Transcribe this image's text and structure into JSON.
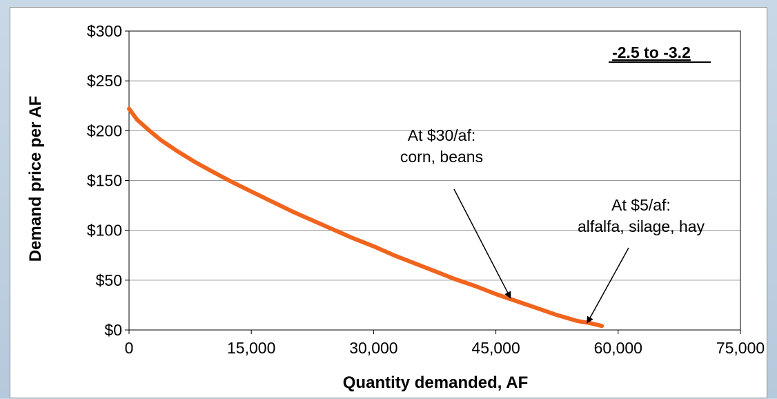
{
  "chart_data": {
    "type": "line",
    "title": "",
    "xlabel": "Quantity demanded, AF",
    "ylabel": "Demand price per AF",
    "xlim": [
      0,
      75000
    ],
    "ylim": [
      0,
      300
    ],
    "x_ticks": [
      "0",
      "15,000",
      "30,000",
      "45,000",
      "60,000",
      "75,000"
    ],
    "y_ticks": [
      "$0",
      "$50",
      "$100",
      "$150",
      "$200",
      "$250",
      "$300"
    ],
    "grid": "horizontal",
    "series": [
      {
        "color": "#f0641e",
        "x": [
          0,
          1000,
          2500,
          4000,
          6000,
          8000,
          10000,
          12500,
          15000,
          17500,
          20000,
          22500,
          25000,
          27500,
          30000,
          32500,
          35000,
          37500,
          40000,
          42500,
          45000,
          47500,
          50000,
          52500,
          55000,
          56500,
          58000
        ],
        "y": [
          222,
          211,
          200,
          190,
          179,
          169,
          160,
          149,
          139,
          129,
          119,
          110,
          101,
          92,
          84,
          75,
          67,
          59,
          51,
          44,
          36,
          29,
          22,
          15,
          9,
          7,
          4
        ]
      }
    ],
    "annotations": [
      {
        "lines": [
          "At $30/af:",
          "corn, beans"
        ],
        "target": [
          46800,
          32
        ]
      },
      {
        "lines": [
          "At $5/af:",
          "alfalfa, silage, hay"
        ],
        "target": [
          56200,
          7
        ]
      }
    ],
    "box_label": "-2.5 to -3.2"
  }
}
